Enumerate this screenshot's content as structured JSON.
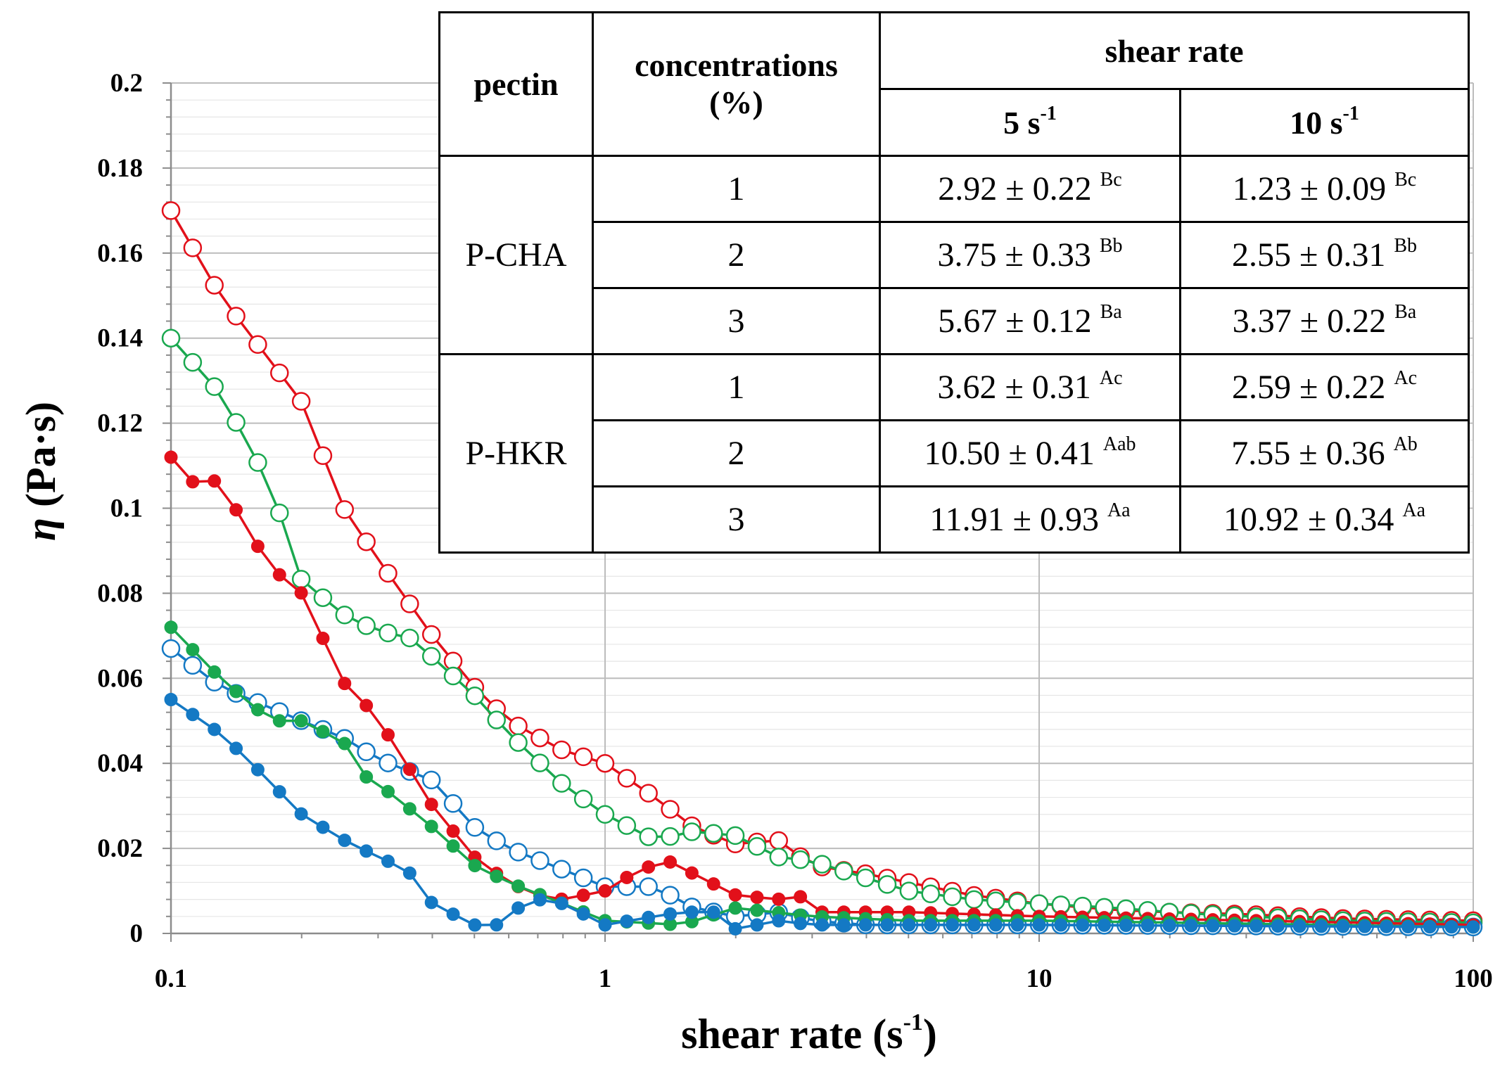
{
  "chart_data": {
    "type": "line",
    "xscale": "log",
    "xlabel": "shear rate (s",
    "xlabel_sup": "-1",
    "xlabel_close": ")",
    "ylabel_symbol": "η",
    "ylabel_units": " (Pa·s)",
    "xlim": [
      0.1,
      100
    ],
    "ylim": [
      0,
      0.2
    ],
    "xticks": [
      "0.1",
      "1",
      "10",
      "100"
    ],
    "yticks": [
      "0",
      "0.02",
      "0.04",
      "0.06",
      "0.08",
      "0.1",
      "0.12",
      "0.14",
      "0.16",
      "0.18",
      "0.2"
    ],
    "grid": true,
    "series": [
      {
        "name": "red-open",
        "color": "#e2101a",
        "marker": "open",
        "key_x": [
          0.1,
          0.13,
          0.2,
          0.25,
          0.3,
          0.4,
          0.5,
          0.6,
          0.8,
          1.0,
          1.3,
          1.6,
          2.0,
          2.5,
          3.0,
          4.0,
          5.0,
          7.0,
          10,
          15,
          20,
          30,
          50,
          100
        ],
        "key_y": [
          0.17,
          0.15,
          0.125,
          0.1,
          0.088,
          0.07,
          0.058,
          0.05,
          0.043,
          0.04,
          0.032,
          0.025,
          0.021,
          0.022,
          0.016,
          0.014,
          0.012,
          0.009,
          0.007,
          0.0055,
          0.005,
          0.0045,
          0.0035,
          0.003
        ]
      },
      {
        "name": "green-open",
        "color": "#1aa84f",
        "marker": "open",
        "key_x": [
          0.1,
          0.13,
          0.17,
          0.2,
          0.25,
          0.3,
          0.35,
          0.4,
          0.5,
          0.6,
          0.8,
          1.0,
          1.3,
          1.6,
          2.0,
          2.5,
          3.0,
          4.0,
          5.0,
          7.0,
          10,
          15,
          20,
          30,
          50,
          100
        ],
        "key_y": [
          0.14,
          0.127,
          0.105,
          0.083,
          0.075,
          0.071,
          0.07,
          0.065,
          0.056,
          0.047,
          0.035,
          0.028,
          0.022,
          0.024,
          0.023,
          0.018,
          0.017,
          0.013,
          0.01,
          0.008,
          0.007,
          0.006,
          0.005,
          0.004,
          0.003,
          0.0025
        ]
      },
      {
        "name": "blue-open",
        "color": "#1479c4",
        "marker": "open",
        "key_x": [
          0.1,
          0.13,
          0.17,
          0.2,
          0.25,
          0.3,
          0.4,
          0.5,
          0.6,
          0.8,
          1.0,
          1.3,
          1.6,
          2.0,
          2.5,
          3.0,
          4.0,
          5.0,
          10,
          100
        ],
        "key_y": [
          0.067,
          0.058,
          0.053,
          0.05,
          0.046,
          0.041,
          0.036,
          0.025,
          0.02,
          0.015,
          0.011,
          0.011,
          0.006,
          0.004,
          0.005,
          0.003,
          0.002,
          0.002,
          0.002,
          0.0015
        ]
      },
      {
        "name": "red-filled",
        "color": "#e2101a",
        "marker": "filled",
        "key_x": [
          0.1,
          0.11,
          0.12,
          0.13,
          0.15,
          0.17,
          0.2,
          0.25,
          0.28,
          0.32,
          0.4,
          0.5,
          0.6,
          0.7,
          0.8,
          1.0,
          1.2,
          1.4,
          1.6,
          2.0,
          2.5,
          2.8,
          3.0,
          4.0,
          5.0,
          10,
          100
        ],
        "key_y": [
          0.112,
          0.106,
          0.107,
          0.106,
          0.095,
          0.086,
          0.08,
          0.059,
          0.054,
          0.046,
          0.03,
          0.018,
          0.012,
          0.009,
          0.008,
          0.01,
          0.015,
          0.017,
          0.014,
          0.009,
          0.008,
          0.009,
          0.005,
          0.005,
          0.005,
          0.004,
          0.002
        ]
      },
      {
        "name": "green-filled",
        "color": "#1aa84f",
        "marker": "filled",
        "key_x": [
          0.1,
          0.13,
          0.17,
          0.2,
          0.25,
          0.28,
          0.32,
          0.4,
          0.5,
          0.6,
          0.8,
          1.0,
          1.5,
          2.0,
          3.0,
          5.0,
          10,
          100
        ],
        "key_y": [
          0.072,
          0.06,
          0.05,
          0.05,
          0.045,
          0.037,
          0.033,
          0.025,
          0.016,
          0.012,
          0.007,
          0.003,
          0.002,
          0.006,
          0.004,
          0.003,
          0.003,
          0.0015
        ]
      },
      {
        "name": "blue-filled",
        "color": "#1479c4",
        "marker": "filled",
        "key_x": [
          0.1,
          0.13,
          0.15,
          0.2,
          0.25,
          0.3,
          0.35,
          0.4,
          0.5,
          0.55,
          0.6,
          0.7,
          0.8,
          1.0,
          1.3,
          1.5,
          1.8,
          2.0,
          2.5,
          3.0,
          5.0,
          10,
          100
        ],
        "key_y": [
          0.055,
          0.047,
          0.041,
          0.028,
          0.022,
          0.018,
          0.015,
          0.007,
          0.002,
          0.001,
          0.005,
          0.008,
          0.007,
          0.002,
          0.004,
          0.005,
          0.005,
          0.001,
          0.003,
          0.002,
          0.002,
          0.002,
          0.0015
        ]
      }
    ],
    "table": {
      "headers": {
        "pectin": "pectin",
        "concentrations": "concentrations",
        "concentrations_unit": "(%)",
        "shear_rate": "shear rate",
        "col5_value": "5 s",
        "col5_sup": "-1",
        "col10_value": "10 s",
        "col10_sup": "-1"
      },
      "groups": [
        {
          "pectin": "P-CHA",
          "rows": [
            {
              "conc": "1",
              "v5": "2.92 ± 0.22 ",
              "v5_sup": "Bc",
              "v10": "1.23 ± 0.09 ",
              "v10_sup": "Bc"
            },
            {
              "conc": "2",
              "v5": "3.75 ± 0.33 ",
              "v5_sup": "Bb",
              "v10": "2.55 ± 0.31 ",
              "v10_sup": "Bb"
            },
            {
              "conc": "3",
              "v5": "5.67 ± 0.12 ",
              "v5_sup": "Ba",
              "v10": "3.37 ± 0.22 ",
              "v10_sup": "Ba"
            }
          ]
        },
        {
          "pectin": "P-HKR",
          "rows": [
            {
              "conc": "1",
              "v5": "3.62 ± 0.31 ",
              "v5_sup": "Ac",
              "v10": "2.59 ± 0.22 ",
              "v10_sup": "Ac"
            },
            {
              "conc": "2",
              "v5": "10.50 ± 0.41 ",
              "v5_sup": "Aab",
              "v10": "7.55 ± 0.36 ",
              "v10_sup": "Ab"
            },
            {
              "conc": "3",
              "v5": "11.91 ± 0.93 ",
              "v5_sup": "Aa",
              "v10": "10.92 ± 0.34 ",
              "v10_sup": "Aa"
            }
          ]
        }
      ]
    }
  }
}
